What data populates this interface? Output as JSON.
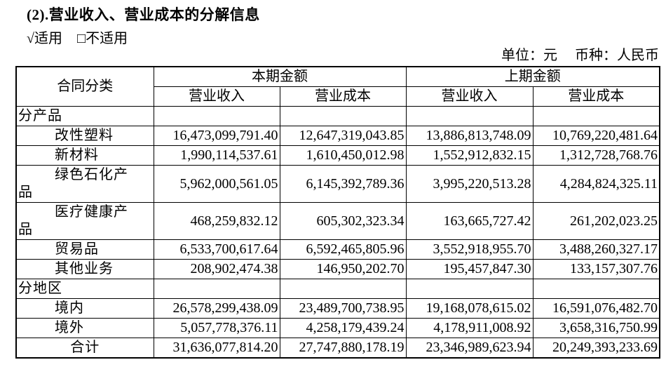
{
  "document": {
    "section_title": "(2).营业收入、营业成本的分解信息",
    "applicable_checked": "√适用",
    "not_applicable": "□不适用",
    "unit_label": "单位：元",
    "currency_label": "币种：人民币"
  },
  "table": {
    "header": {
      "category": "合同分类",
      "current_period": "本期金额",
      "prior_period": "上期金额",
      "revenue": "营业收入",
      "cost": "营业成本"
    },
    "rows": [
      {
        "label": "分产品",
        "type": "section",
        "values": [
          "",
          "",
          "",
          ""
        ]
      },
      {
        "label": "改性塑料",
        "type": "item",
        "values": [
          "16,473,099,791.40",
          "12,647,319,043.85",
          "13,886,813,748.09",
          "10,769,220,481.64"
        ]
      },
      {
        "label": "新材料",
        "type": "item",
        "values": [
          "1,990,114,537.61",
          "1,610,450,012.98",
          "1,552,912,832.15",
          "1,312,728,768.76"
        ]
      },
      {
        "label": "绿色石化产品",
        "type": "item",
        "values": [
          "5,962,000,561.05",
          "6,145,392,789.36",
          "3,995,220,513.28",
          "4,284,824,325.11"
        ]
      },
      {
        "label": "医疗健康产品",
        "type": "item",
        "values": [
          "468,259,832.12",
          "605,302,323.34",
          "163,665,727.42",
          "261,202,023.25"
        ]
      },
      {
        "label": "贸易品",
        "type": "item",
        "values": [
          "6,533,700,617.64",
          "6,592,465,805.96",
          "3,552,918,955.70",
          "3,488,260,327.17"
        ]
      },
      {
        "label": "其他业务",
        "type": "item",
        "values": [
          "208,902,474.38",
          "146,950,202.70",
          "195,457,847.30",
          "133,157,307.76"
        ]
      },
      {
        "label": "分地区",
        "type": "section",
        "values": [
          "",
          "",
          "",
          ""
        ]
      },
      {
        "label": "境内",
        "type": "item",
        "values": [
          "26,578,299,438.09",
          "23,489,700,738.95",
          "19,168,078,615.02",
          "16,591,076,482.70"
        ]
      },
      {
        "label": "境外",
        "type": "item",
        "values": [
          "5,057,778,376.11",
          "4,258,179,439.24",
          "4,178,911,008.92",
          "3,658,316,750.99"
        ]
      },
      {
        "label": "合计",
        "type": "total",
        "values": [
          "31,636,077,814.20",
          "27,747,880,178.19",
          "23,346,989,623.94",
          "20,249,393,233.69"
        ]
      }
    ]
  }
}
